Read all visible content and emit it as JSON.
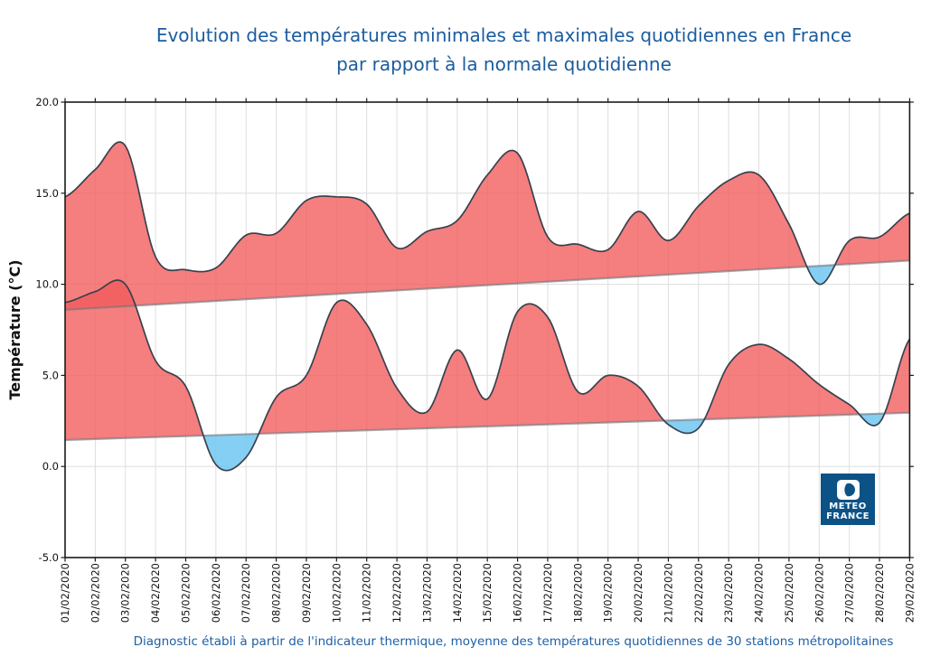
{
  "title": {
    "line1": "Evolution des températures minimales et maximales quotidiennes en France",
    "line2": "par rapport à la normale quotidienne"
  },
  "caption": "Diagnostic établi à partir de l'indicateur thermique, moyenne des températures quotidiennes de 30 stations métropolitaines",
  "logo": {
    "line1": "METEO",
    "line2": "FRANCE"
  },
  "chart_data": {
    "type": "area",
    "title": "Evolution des températures minimales et maximales quotidiennes en France par rapport à la normale quotidienne",
    "ylabel": "Température (°C)",
    "ylim": [
      -5.0,
      20.0
    ],
    "ytick_values": [
      20,
      15,
      10,
      5,
      0,
      -5
    ],
    "ytick_labels": [
      "20.0",
      "15.0",
      "10.0",
      "5.0",
      "0.0",
      "-5.0"
    ],
    "grid": "on",
    "legend": "none",
    "x_labels": [
      "01/02/2020",
      "02/02/2020",
      "03/02/2020",
      "04/02/2020",
      "05/02/2020",
      "06/02/2020",
      "07/02/2020",
      "08/02/2020",
      "09/02/2020",
      "10/02/2020",
      "11/02/2020",
      "12/02/2020",
      "13/02/2020",
      "14/02/2020",
      "15/02/2020",
      "16/02/2020",
      "17/02/2020",
      "18/02/2020",
      "19/02/2020",
      "20/02/2020",
      "21/02/2020",
      "22/02/2020",
      "23/02/2020",
      "24/02/2020",
      "25/02/2020",
      "26/02/2020",
      "27/02/2020",
      "28/02/2020",
      "29/02/2020"
    ],
    "series": [
      {
        "name": "temperature-maximale",
        "values": [
          14.8,
          16.3,
          17.6,
          11.5,
          10.8,
          10.9,
          12.7,
          12.8,
          14.6,
          14.8,
          14.4,
          12.0,
          12.9,
          13.5,
          16.0,
          17.2,
          12.6,
          12.2,
          11.9,
          14.0,
          12.4,
          14.3,
          15.7,
          16.0,
          13.3,
          10.0,
          12.4,
          12.6,
          13.9
        ]
      },
      {
        "name": "temperature-minimale",
        "values": [
          9.0,
          9.6,
          10.0,
          5.8,
          4.4,
          0.1,
          0.5,
          3.8,
          5.0,
          9.0,
          7.8,
          4.3,
          3.0,
          6.4,
          3.7,
          8.5,
          8.2,
          4.1,
          5.0,
          4.4,
          2.3,
          2.1,
          5.6,
          6.7,
          5.9,
          4.5,
          3.4,
          2.4,
          7.0
        ]
      },
      {
        "name": "normale-maximale",
        "values": [
          8.6,
          8.7,
          8.79,
          8.89,
          8.99,
          9.08,
          9.18,
          9.28,
          9.37,
          9.47,
          9.56,
          9.66,
          9.76,
          9.85,
          9.95,
          10.05,
          10.14,
          10.24,
          10.34,
          10.43,
          10.53,
          10.63,
          10.72,
          10.82,
          10.91,
          11.01,
          11.11,
          11.2,
          11.3
        ]
      },
      {
        "name": "normale-minimale",
        "values": [
          1.45,
          1.5,
          1.56,
          1.61,
          1.66,
          1.72,
          1.77,
          1.83,
          1.88,
          1.93,
          1.99,
          2.04,
          2.09,
          2.15,
          2.2,
          2.25,
          2.31,
          2.36,
          2.41,
          2.47,
          2.52,
          2.57,
          2.63,
          2.68,
          2.74,
          2.79,
          2.84,
          2.9,
          2.95
        ]
      }
    ],
    "colors": {
      "above_normal": "#f25a5a",
      "below_normal": "#74c8f2",
      "curve": "#39414d",
      "normal_line": "#6d747b",
      "grid": "#dedede",
      "axis": "#1a1a1a",
      "title_text": "#1b5c9e",
      "caption_text": "#1d5fa6",
      "logo_bg": "#0d5286"
    }
  }
}
